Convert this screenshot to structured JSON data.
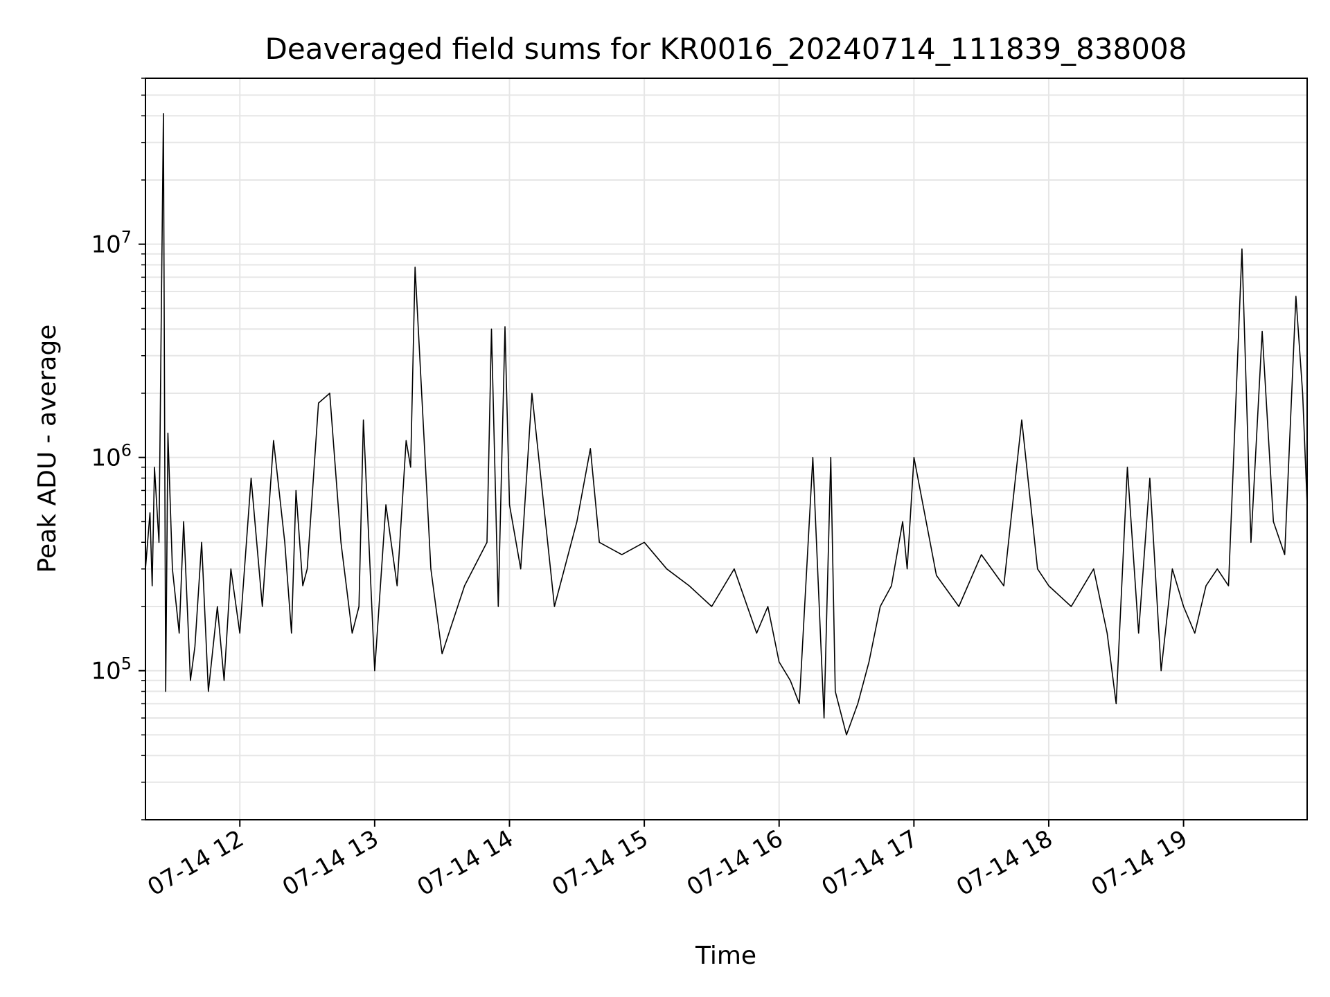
{
  "chart_data": {
    "type": "line",
    "title": "Deaveraged field sums for KR0016_20240714_111839_838008",
    "xlabel": "Time",
    "ylabel": "Peak ADU - average",
    "yscale": "log",
    "grid": true,
    "line_color": "#000000",
    "grid_color": "#e6e6e6",
    "xlim": [
      "2024-07-14 11:18",
      "2024-07-14 19:55"
    ],
    "ylim": [
      20000,
      60000000
    ],
    "x_ticks": [
      {
        "t": "2024-07-14 12:00",
        "label": "07-14 12"
      },
      {
        "t": "2024-07-14 13:00",
        "label": "07-14 13"
      },
      {
        "t": "2024-07-14 14:00",
        "label": "07-14 14"
      },
      {
        "t": "2024-07-14 15:00",
        "label": "07-14 15"
      },
      {
        "t": "2024-07-14 16:00",
        "label": "07-14 16"
      },
      {
        "t": "2024-07-14 17:00",
        "label": "07-14 17"
      },
      {
        "t": "2024-07-14 18:00",
        "label": "07-14 18"
      },
      {
        "t": "2024-07-14 19:00",
        "label": "07-14 19"
      }
    ],
    "y_major_ticks": [
      {
        "value": 100000,
        "base": "10",
        "exp": "5"
      },
      {
        "value": 1000000,
        "base": "10",
        "exp": "6"
      },
      {
        "value": 10000000,
        "base": "10",
        "exp": "7"
      }
    ],
    "series": [
      {
        "x": [
          "2024-07-14 11:18",
          "2024-07-14 11:20",
          "2024-07-14 11:21",
          "2024-07-14 11:22",
          "2024-07-14 11:24",
          "2024-07-14 11:25",
          "2024-07-14 11:26",
          "2024-07-14 11:27",
          "2024-07-14 11:28",
          "2024-07-14 11:30",
          "2024-07-14 11:33",
          "2024-07-14 11:35",
          "2024-07-14 11:38",
          "2024-07-14 11:40",
          "2024-07-14 11:43",
          "2024-07-14 11:46",
          "2024-07-14 11:50",
          "2024-07-14 11:53",
          "2024-07-14 11:56",
          "2024-07-14 12:00",
          "2024-07-14 12:05",
          "2024-07-14 12:10",
          "2024-07-14 12:15",
          "2024-07-14 12:20",
          "2024-07-14 12:23",
          "2024-07-14 12:25",
          "2024-07-14 12:28",
          "2024-07-14 12:30",
          "2024-07-14 12:35",
          "2024-07-14 12:40",
          "2024-07-14 12:45",
          "2024-07-14 12:50",
          "2024-07-14 12:53",
          "2024-07-14 12:55",
          "2024-07-14 13:00",
          "2024-07-14 13:05",
          "2024-07-14 13:10",
          "2024-07-14 13:14",
          "2024-07-14 13:16",
          "2024-07-14 13:18",
          "2024-07-14 13:25",
          "2024-07-14 13:30",
          "2024-07-14 13:40",
          "2024-07-14 13:50",
          "2024-07-14 13:52",
          "2024-07-14 13:55",
          "2024-07-14 13:58",
          "2024-07-14 14:00",
          "2024-07-14 14:05",
          "2024-07-14 14:10",
          "2024-07-14 14:20",
          "2024-07-14 14:30",
          "2024-07-14 14:36",
          "2024-07-14 14:40",
          "2024-07-14 14:50",
          "2024-07-14 15:00",
          "2024-07-14 15:10",
          "2024-07-14 15:20",
          "2024-07-14 15:30",
          "2024-07-14 15:40",
          "2024-07-14 15:50",
          "2024-07-14 15:55",
          "2024-07-14 16:00",
          "2024-07-14 16:05",
          "2024-07-14 16:09",
          "2024-07-14 16:15",
          "2024-07-14 16:20",
          "2024-07-14 16:23",
          "2024-07-14 16:25",
          "2024-07-14 16:30",
          "2024-07-14 16:35",
          "2024-07-14 16:40",
          "2024-07-14 16:45",
          "2024-07-14 16:50",
          "2024-07-14 16:55",
          "2024-07-14 16:57",
          "2024-07-14 17:00",
          "2024-07-14 17:10",
          "2024-07-14 17:20",
          "2024-07-14 17:30",
          "2024-07-14 17:40",
          "2024-07-14 17:48",
          "2024-07-14 17:55",
          "2024-07-14 18:00",
          "2024-07-14 18:10",
          "2024-07-14 18:20",
          "2024-07-14 18:26",
          "2024-07-14 18:30",
          "2024-07-14 18:35",
          "2024-07-14 18:40",
          "2024-07-14 18:45",
          "2024-07-14 18:50",
          "2024-07-14 18:55",
          "2024-07-14 19:00",
          "2024-07-14 19:05",
          "2024-07-14 19:10",
          "2024-07-14 19:15",
          "2024-07-14 19:20",
          "2024-07-14 19:26",
          "2024-07-14 19:30",
          "2024-07-14 19:35",
          "2024-07-14 19:40",
          "2024-07-14 19:45",
          "2024-07-14 19:50",
          "2024-07-14 19:53",
          "2024-07-14 19:55"
        ],
        "y": [
          300000,
          550000,
          250000,
          900000,
          400000,
          4200000,
          41000000,
          80000,
          1300000,
          300000,
          150000,
          500000,
          90000,
          130000,
          400000,
          80000,
          200000,
          90000,
          300000,
          150000,
          800000,
          200000,
          1200000,
          400000,
          150000,
          700000,
          250000,
          300000,
          1800000,
          2000000,
          400000,
          150000,
          200000,
          1500000,
          100000,
          600000,
          250000,
          1200000,
          900000,
          7800000,
          300000,
          120000,
          250000,
          400000,
          4000000,
          200000,
          4100000,
          600000,
          300000,
          2000000,
          200000,
          500000,
          1100000,
          400000,
          350000,
          400000,
          300000,
          250000,
          200000,
          300000,
          150000,
          200000,
          110000,
          90000,
          70000,
          1000000,
          60000,
          1000000,
          80000,
          50000,
          70000,
          110000,
          200000,
          250000,
          500000,
          300000,
          1000000,
          280000,
          200000,
          350000,
          250000,
          1500000,
          300000,
          250000,
          200000,
          300000,
          150000,
          70000,
          900000,
          150000,
          800000,
          100000,
          300000,
          200000,
          150000,
          250000,
          300000,
          250000,
          9500000,
          400000,
          3900000,
          500000,
          350000,
          5700000,
          2000000,
          600000
        ]
      }
    ]
  }
}
